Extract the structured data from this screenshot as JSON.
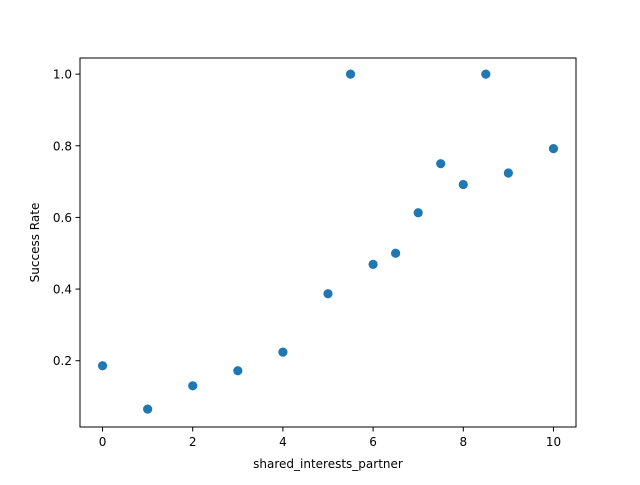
{
  "chart_data": {
    "type": "scatter",
    "title": "",
    "xlabel": "shared_interests_partner",
    "ylabel": "Success Rate",
    "xlim": [
      -0.5,
      10.5
    ],
    "ylim": [
      0.015,
      1.045
    ],
    "x_ticks": [
      0,
      2,
      4,
      6,
      8,
      10
    ],
    "x_tick_labels": [
      "0",
      "2",
      "4",
      "6",
      "8",
      "10"
    ],
    "y_ticks": [
      0.2,
      0.4,
      0.6,
      0.8,
      1.0
    ],
    "y_tick_labels": [
      "0.2",
      "0.4",
      "0.6",
      "0.8",
      "1.0"
    ],
    "grid": false,
    "legend": "none",
    "marker_color": "#1f77b4",
    "points": [
      {
        "x": 0,
        "y": 0.186
      },
      {
        "x": 1,
        "y": 0.065
      },
      {
        "x": 2,
        "y": 0.13
      },
      {
        "x": 3,
        "y": 0.172
      },
      {
        "x": 4,
        "y": 0.224
      },
      {
        "x": 5,
        "y": 0.387
      },
      {
        "x": 5.5,
        "y": 1.0
      },
      {
        "x": 6,
        "y": 0.469
      },
      {
        "x": 6.5,
        "y": 0.5
      },
      {
        "x": 7,
        "y": 0.613
      },
      {
        "x": 7.5,
        "y": 0.75
      },
      {
        "x": 8,
        "y": 0.692
      },
      {
        "x": 8.5,
        "y": 1.0
      },
      {
        "x": 9,
        "y": 0.724
      },
      {
        "x": 10,
        "y": 0.792
      }
    ]
  }
}
